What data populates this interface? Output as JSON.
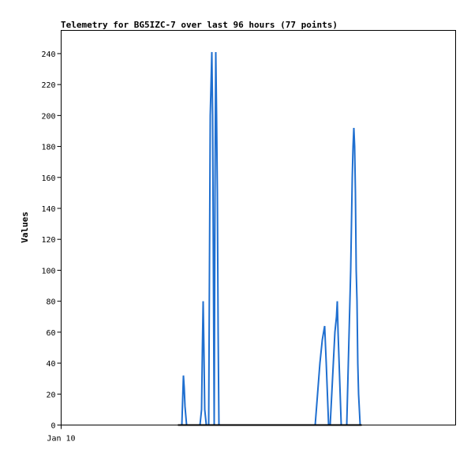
{
  "chart_data": {
    "type": "line",
    "title": "Telemetry for BG5IZC-7 over last 96 hours (77 points)",
    "ylabel": "Values",
    "xlabel": "",
    "ylim": [
      0,
      255
    ],
    "yticks": [
      0,
      20,
      40,
      60,
      80,
      100,
      120,
      140,
      160,
      180,
      200,
      220,
      240
    ],
    "xtick_labels": [
      {
        "label": "Jan 10",
        "x": 0
      }
    ],
    "xlim": [
      0,
      500
    ],
    "grid": false,
    "colors": {
      "line1": "#1f6fd0",
      "line2": "#000000"
    },
    "series": [
      {
        "values": [
          [
            148,
            0
          ],
          [
            151,
            0
          ],
          [
            153,
            0
          ],
          [
            154,
            16
          ],
          [
            155,
            32
          ],
          [
            156,
            24
          ],
          [
            157,
            12
          ],
          [
            159,
            0
          ],
          [
            176,
            0
          ],
          [
            178,
            10
          ],
          [
            179,
            48
          ],
          [
            180,
            80
          ],
          [
            181,
            48
          ],
          [
            182,
            10
          ],
          [
            184,
            0
          ],
          [
            187,
            0
          ],
          [
            188,
            100
          ],
          [
            189,
            200
          ],
          [
            190,
            220
          ],
          [
            191,
            241
          ],
          [
            192,
            200
          ],
          [
            193,
            100
          ],
          [
            194,
            0
          ],
          [
            195,
            150
          ],
          [
            196,
            241
          ],
          [
            197,
            200
          ],
          [
            198,
            150
          ],
          [
            199,
            60
          ],
          [
            200,
            0
          ],
          [
            322,
            0
          ],
          [
            325,
            20
          ],
          [
            328,
            40
          ],
          [
            331,
            55
          ],
          [
            334,
            64
          ],
          [
            336,
            40
          ],
          [
            339,
            0
          ],
          [
            341,
            0
          ],
          [
            343,
            20
          ],
          [
            345,
            40
          ],
          [
            347,
            60
          ],
          [
            349,
            70
          ],
          [
            350,
            80
          ],
          [
            351,
            60
          ],
          [
            353,
            30
          ],
          [
            355,
            0
          ],
          [
            362,
            0
          ],
          [
            365,
            60
          ],
          [
            367,
            100
          ],
          [
            368,
            130
          ],
          [
            369,
            160
          ],
          [
            370,
            180
          ],
          [
            371,
            192
          ],
          [
            372,
            180
          ],
          [
            373,
            150
          ],
          [
            374,
            100
          ],
          [
            375,
            80
          ],
          [
            376,
            40
          ],
          [
            377,
            20
          ],
          [
            379,
            0
          ]
        ]
      },
      {
        "values": [
          [
            148,
            0
          ],
          [
            381,
            0
          ]
        ]
      }
    ]
  }
}
